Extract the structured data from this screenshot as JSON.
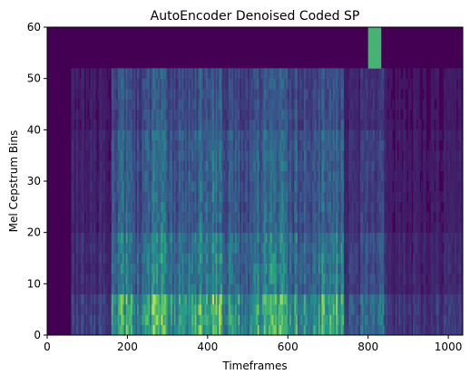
{
  "chart_data": {
    "type": "heatmap",
    "title": "AutoEncoder Denoised Coded SP",
    "xlabel": "Timeframes",
    "ylabel": "Mel Cepstrum Bins",
    "xlim": [
      0,
      1036
    ],
    "ylim": [
      0,
      60
    ],
    "x_ticks": [
      0,
      200,
      400,
      600,
      800,
      1000
    ],
    "y_ticks": [
      0,
      10,
      20,
      30,
      40,
      50,
      60
    ],
    "colormap": "viridis",
    "grid": false,
    "colors": {
      "low": "#440154",
      "mid": "#21918c",
      "high": "#fde725"
    },
    "intensity_profile": {
      "description_keys": [
        "timeframe_start",
        "timeframe_end",
        "level"
      ],
      "segments": [
        [
          0,
          60,
          0.05
        ],
        [
          60,
          160,
          0.25
        ],
        [
          160,
          200,
          0.75
        ],
        [
          200,
          260,
          0.6
        ],
        [
          260,
          300,
          0.8
        ],
        [
          300,
          380,
          0.65
        ],
        [
          380,
          440,
          0.8
        ],
        [
          440,
          520,
          0.6
        ],
        [
          520,
          600,
          0.75
        ],
        [
          600,
          680,
          0.65
        ],
        [
          680,
          740,
          0.7
        ],
        [
          740,
          780,
          0.3
        ],
        [
          780,
          840,
          0.45
        ],
        [
          840,
          1036,
          0.2
        ]
      ],
      "bright_bands_bins": [
        [
          0,
          7,
          0.95
        ],
        [
          7,
          20,
          0.65
        ],
        [
          20,
          40,
          0.5
        ],
        [
          40,
          52,
          0.4
        ],
        [
          52,
          60,
          0.0
        ]
      ]
    }
  }
}
